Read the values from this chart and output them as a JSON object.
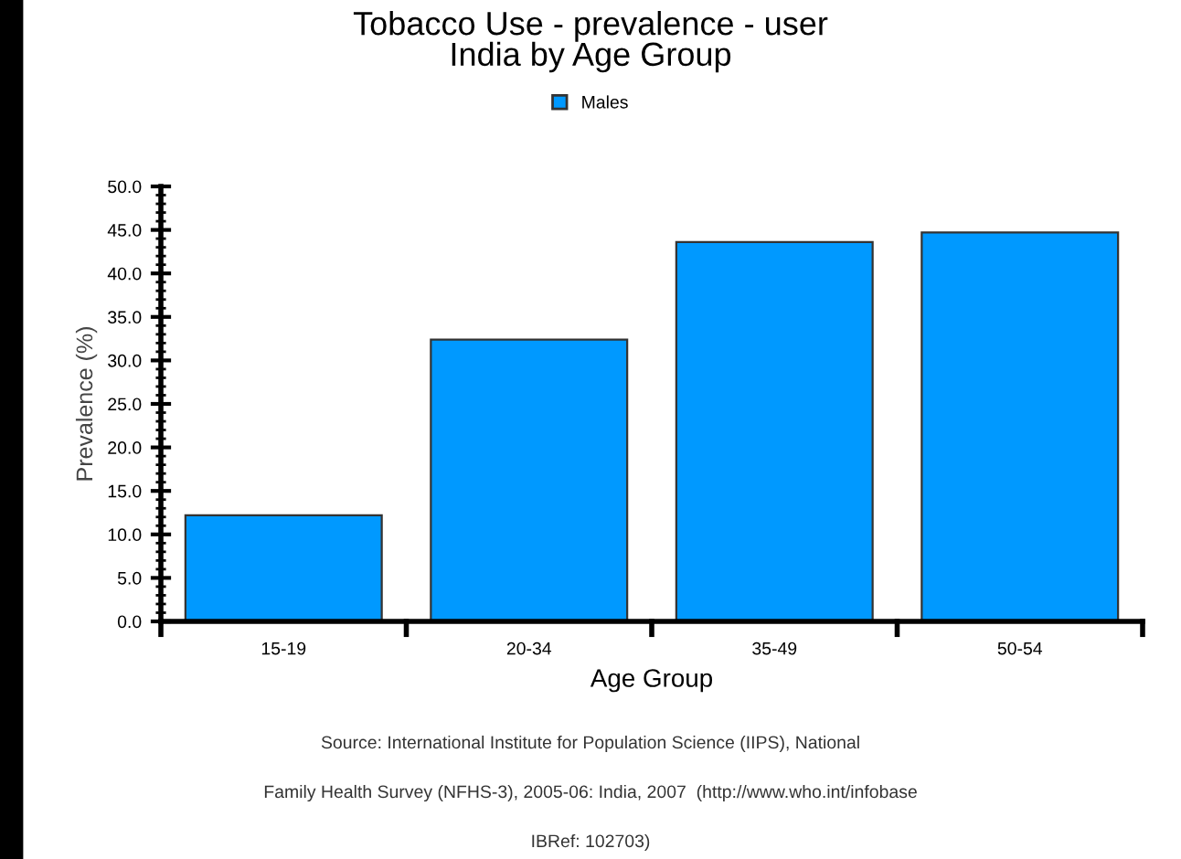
{
  "chart_data": {
    "type": "bar",
    "title": "Tobacco Use - prevalence - user\nIndia by Age Group",
    "xlabel": "Age Group",
    "ylabel": "Prevalence (%)",
    "categories": [
      "15-19",
      "20-34",
      "35-49",
      "50-54"
    ],
    "series": [
      {
        "name": "Males",
        "color": "#0099ff",
        "values": [
          12.2,
          32.4,
          43.6,
          44.7
        ]
      }
    ],
    "ylim": [
      0,
      50
    ],
    "yticks": [
      {
        "value": 0,
        "label": "0.0"
      },
      {
        "value": 5,
        "label": "5.0"
      },
      {
        "value": 10,
        "label": "10.0"
      },
      {
        "value": 15,
        "label": "15.0"
      },
      {
        "value": 20,
        "label": "20.0"
      },
      {
        "value": 25,
        "label": "25.0"
      },
      {
        "value": 30,
        "label": "30.0"
      },
      {
        "value": 35,
        "label": "35.0"
      },
      {
        "value": 40,
        "label": "40.0"
      },
      {
        "value": 45,
        "label": "45.0"
      },
      {
        "value": 50,
        "label": "50.0"
      }
    ],
    "grid": false,
    "legend": "top",
    "annotations": [
      "Source: International Institute for Population Science (IIPS), National",
      "Family Health Survey (NFHS-3), 2005-06: India, 2007  (http://www.who.int/infobase",
      "IBRef: 102703)"
    ]
  }
}
